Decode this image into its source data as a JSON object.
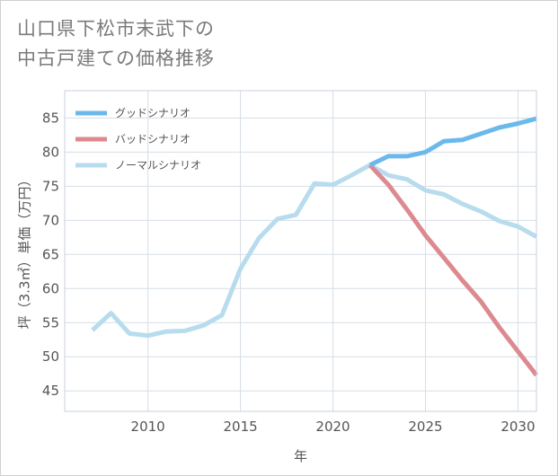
{
  "title": {
    "line1": "山口県下松市末武下の",
    "line2": "中古戸建ての価格推移"
  },
  "chart_data": {
    "type": "line",
    "xlabel": "年",
    "ylabel": "坪（3.3㎡）単価（万円）",
    "xlim": [
      2005.5,
      2031
    ],
    "ylim": [
      42,
      89
    ],
    "xticks": [
      2010,
      2015,
      2020,
      2025,
      2030
    ],
    "yticks": [
      45,
      50,
      55,
      60,
      65,
      70,
      75,
      80,
      85
    ],
    "grid": true,
    "legend_position": "top-left",
    "series": [
      {
        "name": "グッドシナリオ",
        "color": "#6bb8ec",
        "x": [
          2022,
          2023,
          2024,
          2025,
          2026,
          2027,
          2028,
          2029,
          2030,
          2031
        ],
        "y": [
          78.1,
          79.4,
          79.4,
          80.0,
          81.6,
          81.8,
          82.7,
          83.6,
          84.2,
          84.9
        ]
      },
      {
        "name": "バッドシナリオ",
        "color": "#dc8a90",
        "x": [
          2022,
          2023,
          2024,
          2025,
          2026,
          2027,
          2028,
          2029,
          2030,
          2031
        ],
        "y": [
          78.1,
          75.2,
          71.6,
          67.8,
          64.5,
          61.2,
          58.1,
          54.3,
          50.8,
          47.3
        ]
      },
      {
        "name": "ノーマルシナリオ",
        "color": "#b7dced",
        "x": [
          2007,
          2008,
          2009,
          2010,
          2011,
          2012,
          2013,
          2014,
          2015,
          2016,
          2017,
          2018,
          2019,
          2020,
          2021,
          2022,
          2023,
          2024,
          2025,
          2026,
          2027,
          2028,
          2029,
          2030,
          2031
        ],
        "y": [
          53.9,
          56.4,
          53.4,
          53.1,
          53.7,
          53.8,
          54.6,
          56.1,
          62.9,
          67.4,
          70.2,
          70.8,
          75.4,
          75.2,
          76.6,
          78.1,
          76.6,
          76.0,
          74.4,
          73.8,
          72.4,
          71.3,
          69.9,
          69.1,
          67.6
        ]
      }
    ]
  }
}
